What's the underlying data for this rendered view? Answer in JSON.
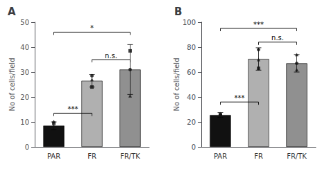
{
  "chart_data": [
    {
      "type": "bar",
      "title": "A",
      "ylabel": "No of cells/field",
      "categories": [
        "PAR",
        "FR",
        "FR/TK"
      ],
      "ylim": [
        0,
        50
      ],
      "yticks": [
        0,
        10,
        20,
        30,
        40,
        50
      ],
      "grid": false,
      "series": [
        {
          "type": "bar",
          "values": [
            8.5,
            26.5,
            31.0
          ],
          "errors": [
            1.5,
            2.5,
            10.0
          ],
          "colors": [
            "#111111",
            "#b0b0b0",
            "#909090"
          ]
        },
        {
          "type": "scatter",
          "color": "#111111",
          "values": [
            [
              8.0,
              9.5,
              10.2
            ],
            [
              24.0,
              27.0,
              28.5
            ],
            [
              20.5,
              31.0,
              38.5
            ]
          ],
          "markers": [
            [
              "circle",
              "square",
              "triangle"
            ],
            [
              "square",
              "triangle",
              "circle"
            ],
            [
              "triangle",
              "circle",
              "square"
            ]
          ]
        }
      ],
      "annotations": [
        {
          "text": "***",
          "from": "PAR",
          "to": "FR",
          "y": 13.5
        },
        {
          "text": "n.s.",
          "from": "FR",
          "to": "FR/TK",
          "y": 35.0
        },
        {
          "text": "*",
          "from": "PAR",
          "to": "FR/TK",
          "y": 46.0
        }
      ]
    },
    {
      "type": "bar",
      "title": "B",
      "ylabel": "No of cells/field",
      "categories": [
        "PAR",
        "FR",
        "FR/TK"
      ],
      "ylim": [
        0,
        100
      ],
      "yticks": [
        0,
        20,
        40,
        60,
        80,
        100
      ],
      "grid": false,
      "series": [
        {
          "type": "bar",
          "values": [
            25.5,
            70.5,
            67.0
          ],
          "errors": [
            2.0,
            9.0,
            7.0
          ],
          "colors": [
            "#111111",
            "#b0b0b0",
            "#909090"
          ]
        },
        {
          "type": "scatter",
          "color": "#111111",
          "values": [
            [
              25.0,
              25.5,
              26.5
            ],
            [
              63.0,
              70.0,
              78.0
            ],
            [
              62.0,
              67.0,
              74.0
            ]
          ],
          "markers": [
            [
              "square",
              "square",
              "circle"
            ],
            [
              "square",
              "triangle",
              "circle"
            ],
            [
              "triangle",
              "circle",
              "triangle"
            ]
          ]
        }
      ],
      "annotations": [
        {
          "text": "***",
          "from": "PAR",
          "to": "FR",
          "y": 36.0
        },
        {
          "text": "n.s.",
          "from": "FR",
          "to": "FR/TK",
          "y": 84.0
        },
        {
          "text": "***",
          "from": "PAR",
          "to": "FR/TK",
          "y": 95.0
        }
      ]
    }
  ]
}
